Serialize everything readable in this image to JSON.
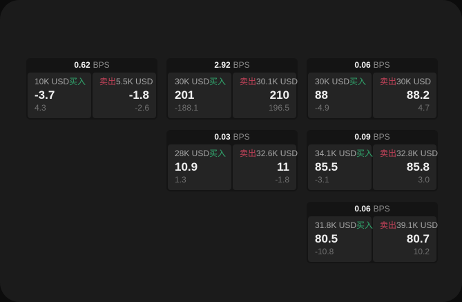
{
  "labels": {
    "bps_unit": "BPS",
    "buy": "买入",
    "sell": "卖出"
  },
  "colors": {
    "buy_green": "#31a56c",
    "sell_red": "#c24259",
    "page_background": "#1b1b1b",
    "card_background": "#141414",
    "panel_background": "#242424"
  },
  "cards": [
    {
      "bps": "0.62",
      "buy": {
        "amount": "10K USD",
        "price": "-3.7",
        "delta": "4.3"
      },
      "sell": {
        "amount": "5.5K USD",
        "price": "-1.8",
        "delta": "-2.6"
      }
    },
    {
      "bps": "2.92",
      "buy": {
        "amount": "30K USD",
        "price": "201",
        "delta": "-188.1"
      },
      "sell": {
        "amount": "30.1K USD",
        "price": "210",
        "delta": "196.5"
      }
    },
    {
      "bps": "0.06",
      "buy": {
        "amount": "30K USD",
        "price": "88",
        "delta": "-4.9"
      },
      "sell": {
        "amount": "30K USD",
        "price": "88.2",
        "delta": "4.7"
      }
    },
    {
      "bps": "0.03",
      "buy": {
        "amount": "28K USD",
        "price": "10.9",
        "delta": "1.3"
      },
      "sell": {
        "amount": "32.6K USD",
        "price": "11",
        "delta": "-1.8"
      }
    },
    {
      "bps": "0.09",
      "buy": {
        "amount": "34.1K USD",
        "price": "85.5",
        "delta": "-3.1"
      },
      "sell": {
        "amount": "32.8K USD",
        "price": "85.8",
        "delta": "3.0"
      }
    },
    {
      "bps": "0.06",
      "buy": {
        "amount": "31.8K USD",
        "price": "80.5",
        "delta": "-10.8"
      },
      "sell": {
        "amount": "39.1K USD",
        "price": "80.7",
        "delta": "10.2"
      }
    }
  ]
}
